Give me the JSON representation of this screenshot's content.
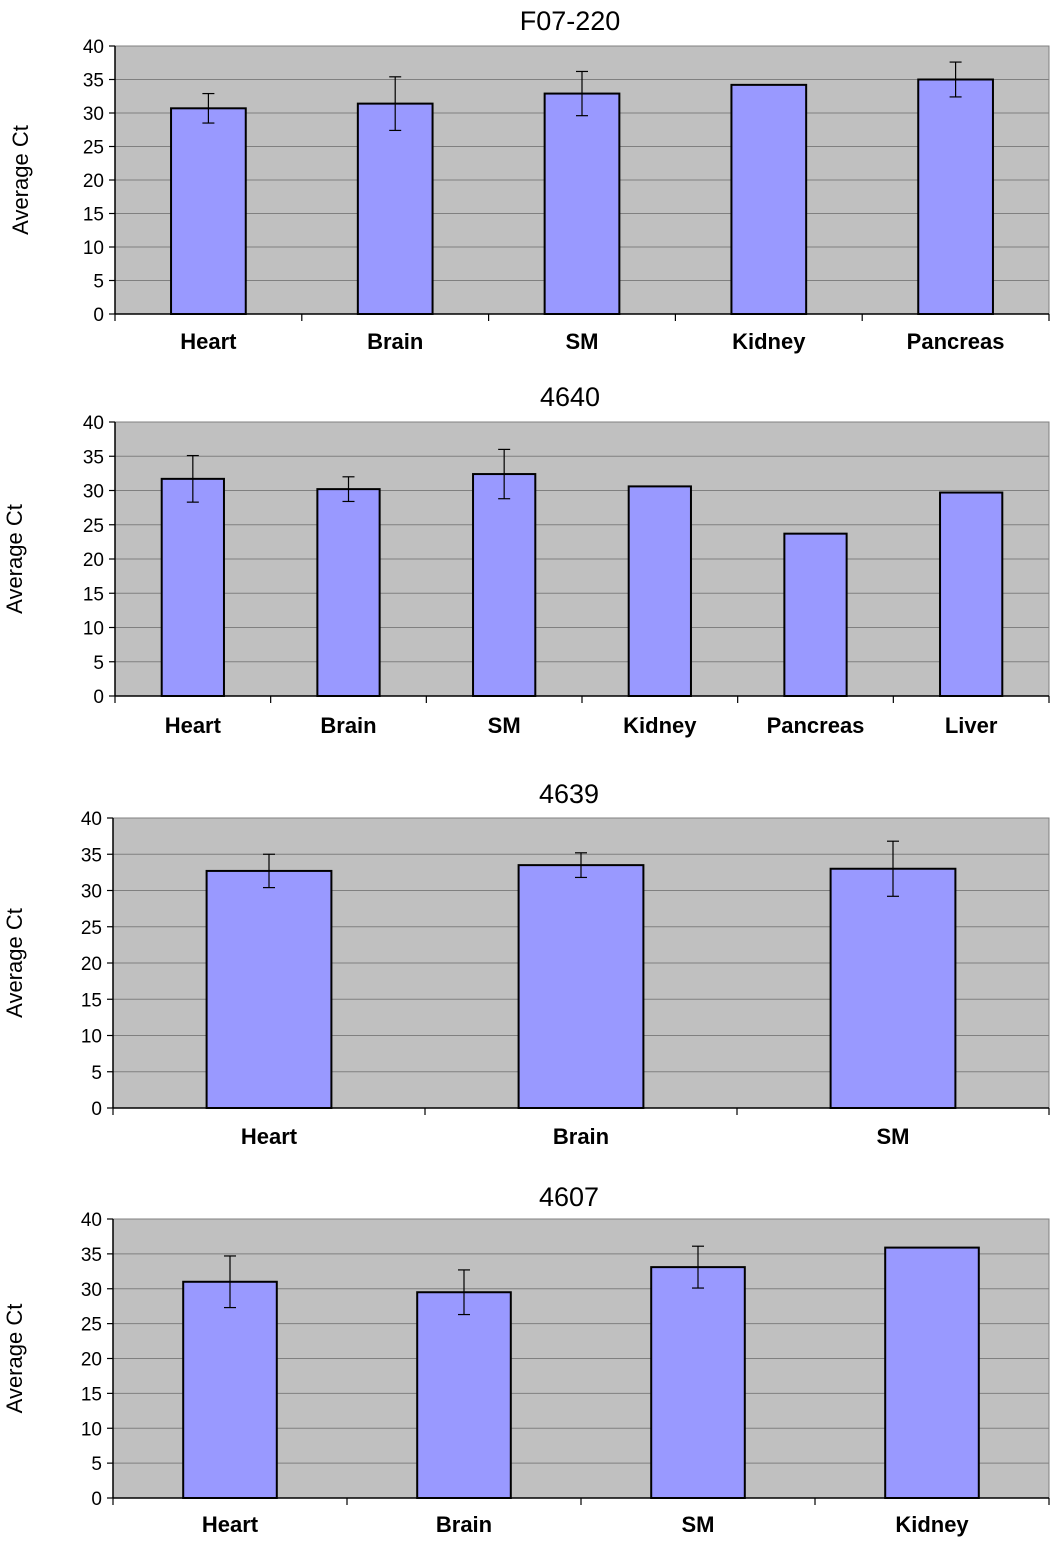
{
  "chart_data": [
    {
      "type": "bar",
      "title": "F07-220",
      "ylabel": "Average Ct",
      "xlabel": "",
      "ylim": [
        0,
        40
      ],
      "yticks": [
        0,
        5,
        10,
        15,
        20,
        25,
        30,
        35,
        40
      ],
      "categories": [
        "Heart",
        "Brain",
        "SM",
        "Kidney",
        "Pancreas"
      ],
      "values": [
        30.7,
        31.4,
        32.9,
        34.2,
        35.0
      ],
      "error": [
        2.2,
        4.0,
        3.3,
        null,
        2.6
      ],
      "grid": true,
      "colors": {
        "bar": "#9999ff",
        "plot_bg": "#c0c0c0",
        "grid": "#808080"
      }
    },
    {
      "type": "bar",
      "title": "4640",
      "ylabel": "Average Ct",
      "xlabel": "",
      "ylim": [
        0,
        40
      ],
      "yticks": [
        0,
        5,
        10,
        15,
        20,
        25,
        30,
        35,
        40
      ],
      "categories": [
        "Heart",
        "Brain",
        "SM",
        "Kidney",
        "Pancreas",
        "Liver"
      ],
      "values": [
        31.7,
        30.2,
        32.4,
        30.6,
        23.7,
        29.7
      ],
      "error": [
        3.4,
        1.8,
        3.6,
        null,
        null,
        null
      ],
      "grid": true,
      "colors": {
        "bar": "#9999ff",
        "plot_bg": "#c0c0c0",
        "grid": "#808080"
      }
    },
    {
      "type": "bar",
      "title": "4639",
      "ylabel": "Average Ct",
      "xlabel": "",
      "ylim": [
        0,
        40
      ],
      "yticks": [
        0,
        5,
        10,
        15,
        20,
        25,
        30,
        35,
        40
      ],
      "categories": [
        "Heart",
        "Brain",
        "SM"
      ],
      "values": [
        32.7,
        33.5,
        33.0
      ],
      "error": [
        2.3,
        1.7,
        3.8
      ],
      "grid": true,
      "colors": {
        "bar": "#9999ff",
        "plot_bg": "#c0c0c0",
        "grid": "#808080"
      }
    },
    {
      "type": "bar",
      "title": "4607",
      "ylabel": "Average Ct",
      "xlabel": "",
      "ylim": [
        0,
        40
      ],
      "yticks": [
        0,
        5,
        10,
        15,
        20,
        25,
        30,
        35,
        40
      ],
      "categories": [
        "Heart",
        "Brain",
        "SM",
        "Kidney"
      ],
      "values": [
        31.0,
        29.5,
        33.1,
        35.9
      ],
      "error": [
        3.7,
        3.2,
        3.0,
        null
      ],
      "grid": true,
      "colors": {
        "bar": "#9999ff",
        "plot_bg": "#c0c0c0",
        "grid": "#808080"
      }
    }
  ]
}
